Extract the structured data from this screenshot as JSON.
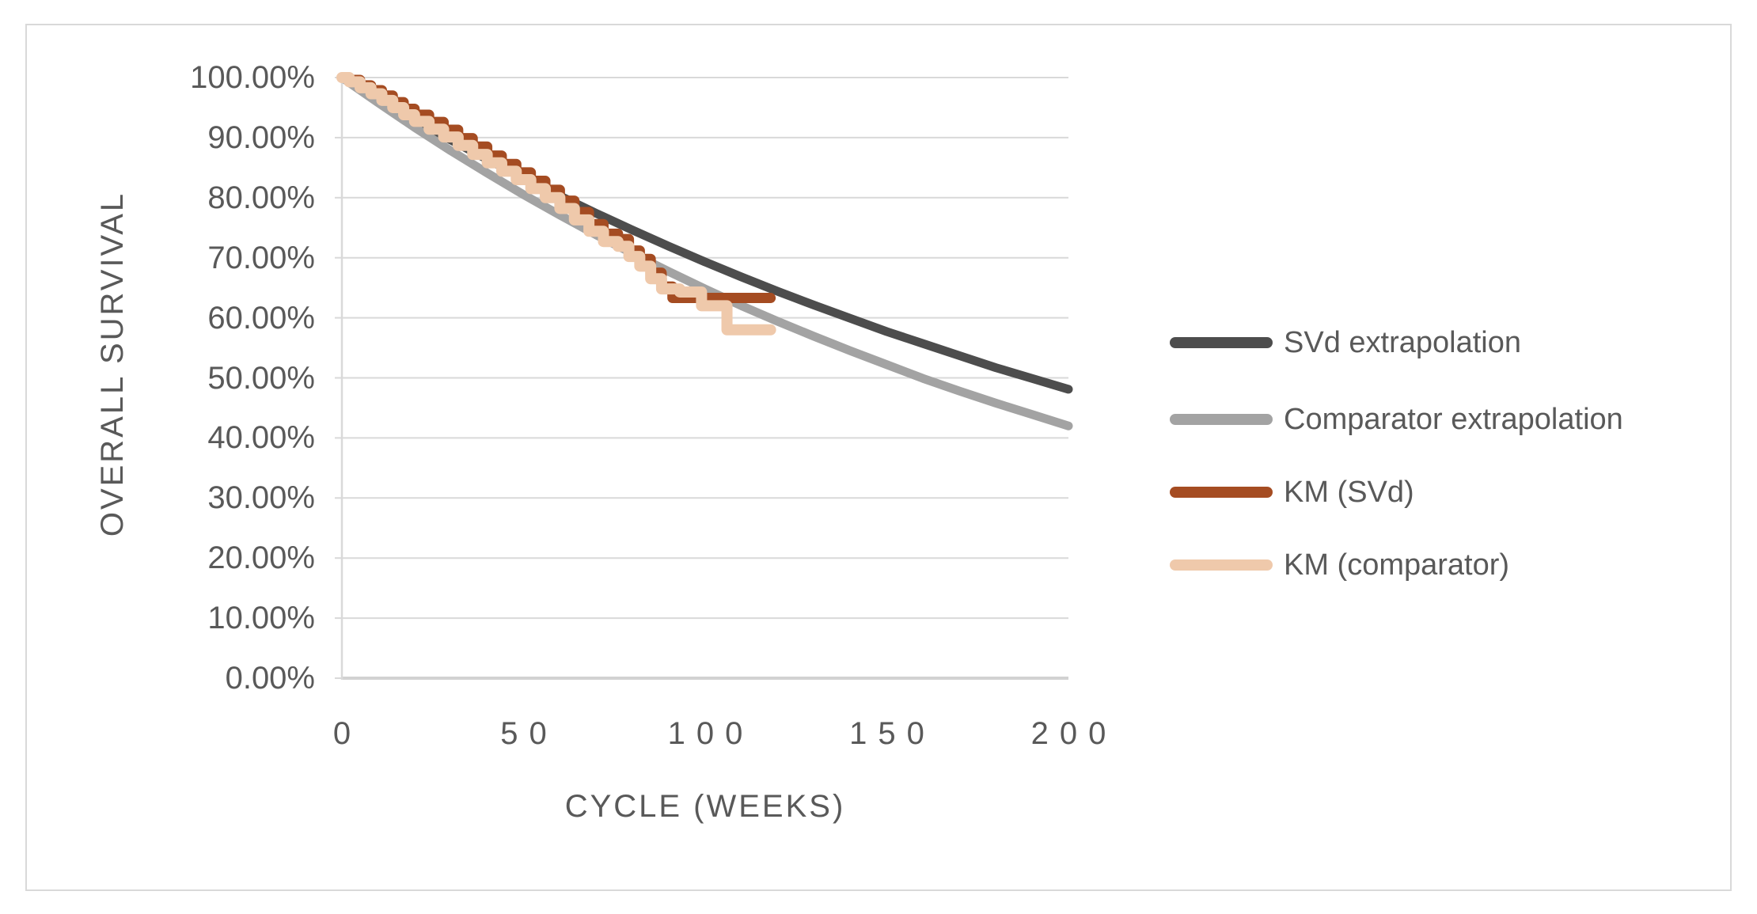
{
  "colors": {
    "grid": "#d9d9d9",
    "axis_line": "#d9d9d9",
    "baseline": "#d2d2d2",
    "text": "#595959",
    "frame_border": "#d9d9d9",
    "background": "#ffffff"
  },
  "chart_data": {
    "type": "line",
    "title": "",
    "xlabel": "CYCLE (WEEKS)",
    "ylabel": "OVERALL SURVIVAL",
    "xlim": [
      0,
      200
    ],
    "ylim": [
      0,
      100
    ],
    "grid": true,
    "legend_position": "right",
    "x_ticks": [
      {
        "value": 0,
        "label": "0"
      },
      {
        "value": 50,
        "label": "50"
      },
      {
        "value": 100,
        "label": "100"
      },
      {
        "value": 150,
        "label": "150"
      },
      {
        "value": 200,
        "label": "200"
      }
    ],
    "y_ticks": [
      {
        "value": 100,
        "label": "100.00%"
      },
      {
        "value": 90,
        "label": "90.00%"
      },
      {
        "value": 80,
        "label": "80.00%"
      },
      {
        "value": 70,
        "label": "70.00%"
      },
      {
        "value": 60,
        "label": "60.00%"
      },
      {
        "value": 50,
        "label": "50.00%"
      },
      {
        "value": 40,
        "label": "40.00%"
      },
      {
        "value": 30,
        "label": "30.00%"
      },
      {
        "value": 20,
        "label": "20.00%"
      },
      {
        "value": 10,
        "label": "10.00%"
      },
      {
        "value": 0,
        "label": "0.00%"
      }
    ],
    "series": [
      {
        "name": "SVd extrapolation",
        "color": "#4d4d4d",
        "style": "smooth",
        "x": [
          0,
          10,
          20,
          30,
          40,
          50,
          60,
          70,
          80,
          90,
          100,
          110,
          120,
          130,
          140,
          150,
          160,
          170,
          180,
          190,
          200
        ],
        "y": [
          100,
          96.4,
          92.9,
          89.6,
          86.4,
          83.3,
          80.3,
          77.4,
          74.6,
          71.9,
          69.3,
          66.8,
          64.4,
          62.1,
          59.9,
          57.7,
          55.7,
          53.7,
          51.7,
          49.9,
          48.1
        ]
      },
      {
        "name": "Comparator extrapolation",
        "color": "#a3a3a3",
        "style": "smooth",
        "x": [
          0,
          10,
          20,
          30,
          40,
          50,
          60,
          70,
          80,
          90,
          100,
          110,
          120,
          130,
          140,
          150,
          160,
          170,
          180,
          190,
          200
        ],
        "y": [
          100,
          95.8,
          91.7,
          87.8,
          84.1,
          80.5,
          77.1,
          73.8,
          70.7,
          67.7,
          64.8,
          62.0,
          59.4,
          56.9,
          54.5,
          52.2,
          49.9,
          47.8,
          45.8,
          43.9,
          42.0
        ]
      },
      {
        "name": "KM (SVd)",
        "color": "#a54c22",
        "style": "step",
        "x": [
          0,
          2,
          5,
          8,
          11,
          14,
          17,
          20,
          24,
          28,
          32,
          36,
          40,
          44,
          48,
          52,
          56,
          60,
          64,
          68,
          72,
          76,
          79,
          82,
          85,
          88,
          91,
          118
        ],
        "y": [
          100,
          99.6,
          98.7,
          97.9,
          97.0,
          95.9,
          94.8,
          93.8,
          92.6,
          91.3,
          89.9,
          88.5,
          87.0,
          85.6,
          84.2,
          82.8,
          81.3,
          79.5,
          77.6,
          75.6,
          74.0,
          73.1,
          71.2,
          69.8,
          67.5,
          65.2,
          63.3,
          63.3
        ]
      },
      {
        "name": "KM (comparator)",
        "color": "#efc9ab",
        "style": "step",
        "x": [
          0,
          2,
          5,
          8,
          11,
          14,
          17,
          20,
          24,
          28,
          32,
          36,
          40,
          44,
          48,
          52,
          56,
          60,
          64,
          68,
          72,
          76,
          79,
          82,
          85,
          88,
          93,
          99,
          106,
          118
        ],
        "y": [
          100,
          99.3,
          98.3,
          97.3,
          96.2,
          95.0,
          93.8,
          92.7,
          91.4,
          90.1,
          88.7,
          87.2,
          85.8,
          84.4,
          83.0,
          81.5,
          80.0,
          78.2,
          76.3,
          74.4,
          72.7,
          71.9,
          70.2,
          68.6,
          66.5,
          64.8,
          64.3,
          62.0,
          58.0,
          58.0
        ]
      }
    ]
  }
}
